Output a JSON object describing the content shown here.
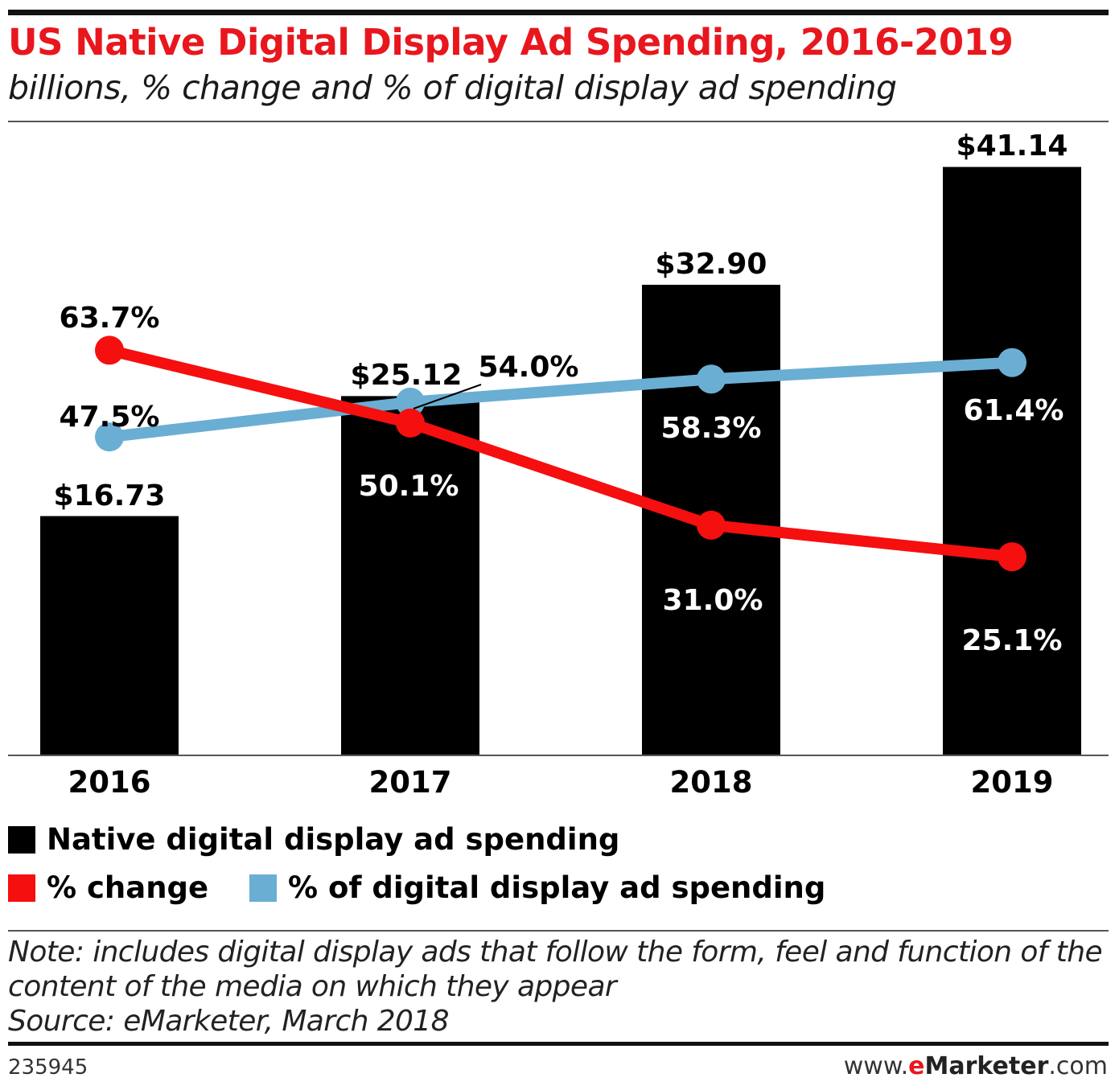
{
  "header": {
    "title": "US Native Digital Display Ad Spending, 2016-2019",
    "subtitle": "billions, % change and % of digital display ad spending"
  },
  "chart_data": {
    "type": "bar",
    "categories": [
      "2016",
      "2017",
      "2018",
      "2019"
    ],
    "series": [
      {
        "name": "Native digital display ad spending",
        "kind": "bar",
        "color": "#000000",
        "values": [
          16.73,
          25.12,
          32.9,
          41.14
        ],
        "labels": [
          "$16.73",
          "$25.12",
          "$32.90",
          "$41.14"
        ]
      },
      {
        "name": "% change",
        "kind": "line",
        "color": "#f50f0f",
        "values": [
          63.7,
          50.1,
          31.0,
          25.1
        ],
        "labels": [
          "63.7%",
          "50.1%",
          "31.0%",
          "25.1%"
        ]
      },
      {
        "name": "% of digital display ad spending",
        "kind": "line",
        "color": "#6aaed3",
        "values": [
          47.5,
          54.0,
          58.3,
          61.4
        ],
        "labels": [
          "47.5%",
          "54.0%",
          "58.3%",
          "61.4%"
        ]
      }
    ],
    "ylim_bars": [
      0,
      45
    ],
    "ylim_lines": [
      10,
      80
    ]
  },
  "legend": {
    "items": [
      {
        "label": "Native digital display ad spending",
        "color": "#000000"
      },
      {
        "label": "% change",
        "color": "#f50f0f"
      },
      {
        "label": "% of digital display ad spending",
        "color": "#6aaed3"
      }
    ]
  },
  "footer": {
    "note": "Note: includes digital display ads that follow the form, feel and function of the content of the media on which they appear",
    "source": "Source: eMarketer, March 2018",
    "chart_id": "235945",
    "brand_prefix": "www.",
    "brand_e": "e",
    "brand_main": "Marketer",
    "brand_suffix": ".com"
  }
}
